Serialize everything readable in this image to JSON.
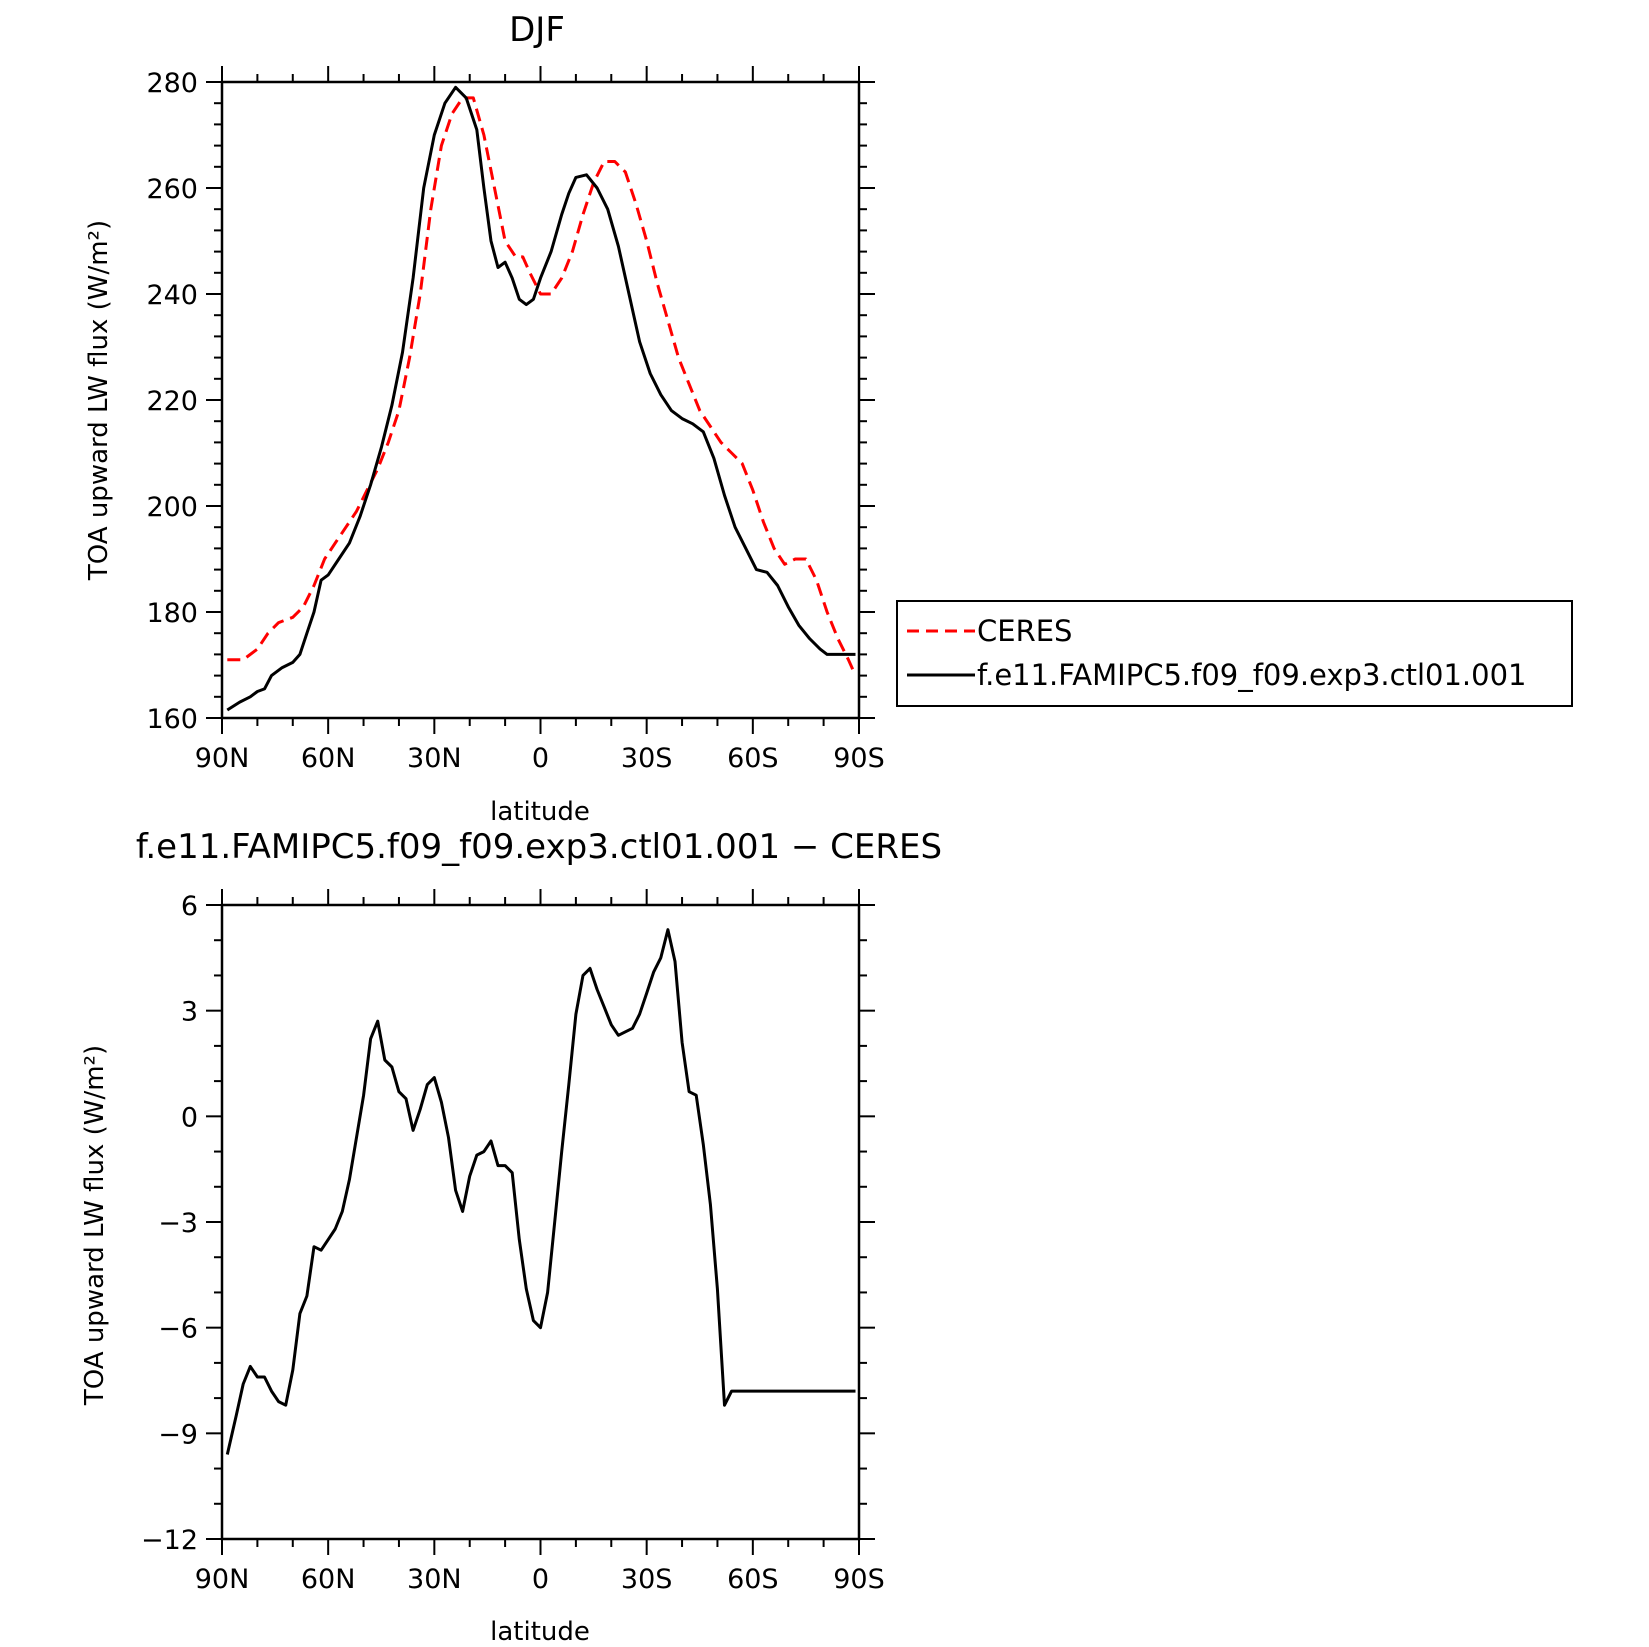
{
  "chart_data": [
    {
      "type": "line",
      "title": "DJF",
      "xlabel": "latitude",
      "ylabel": "TOA upward LW flux (W/m²)",
      "xlim": [
        90,
        -90
      ],
      "ylim": [
        160,
        280
      ],
      "yticks": [
        160,
        180,
        200,
        220,
        240,
        260,
        280
      ],
      "xticks": [
        90,
        60,
        30,
        0,
        -30,
        -60,
        -90
      ],
      "xtick_labels": [
        "90N",
        "60N",
        "30N",
        "0",
        "30S",
        "60S",
        "90S"
      ],
      "legend": "right",
      "legend_entries": [
        "CERES",
        "f.e11.FAMIPC5.f09_f09.exp3.ctl01.001"
      ],
      "series": [
        {
          "name": "CERES",
          "color": "#ff0000",
          "dash": "dashed",
          "x": [
            88.5,
            84,
            80,
            77,
            74,
            70,
            67,
            64,
            61,
            58,
            55,
            52,
            49,
            46,
            43,
            40,
            37,
            34,
            31,
            28,
            25,
            22,
            19,
            16,
            13,
            10,
            7,
            5,
            3,
            0,
            -3,
            -6,
            -9,
            -12,
            -15,
            -18,
            -21,
            -24,
            -27,
            -30,
            -33,
            -36,
            -39,
            -42,
            -45,
            -48,
            -51,
            -54,
            -57,
            -60,
            -63,
            -66,
            -69,
            -72,
            -75,
            -78,
            -81,
            -84,
            -87,
            -89
          ],
          "y": [
            171,
            171,
            173,
            176,
            178,
            179,
            181,
            185,
            190,
            193,
            196,
            199,
            203,
            207,
            212,
            218,
            228,
            240,
            256,
            268,
            274,
            277,
            277,
            270,
            260,
            250,
            247,
            247,
            244,
            240,
            240,
            243,
            248,
            255,
            261,
            265,
            265,
            263,
            257,
            250,
            242,
            235,
            228,
            223,
            218,
            215,
            212,
            210,
            208,
            203,
            197,
            192,
            189,
            190,
            190,
            186,
            180,
            175,
            171,
            168
          ]
        },
        {
          "name": "f.e11.FAMIPC5.f09_f09.exp3.ctl01.001",
          "color": "#000000",
          "dash": "solid",
          "x": [
            88.5,
            85,
            82,
            80,
            78,
            76,
            73,
            70,
            68,
            66,
            64,
            62,
            60,
            57,
            54,
            51,
            48,
            45,
            42,
            39,
            36,
            33,
            30,
            27,
            24,
            21,
            18,
            16,
            14,
            12,
            10,
            8,
            6,
            4,
            2,
            0,
            -3,
            -6,
            -8,
            -10,
            -13,
            -16,
            -19,
            -22,
            -25,
            -28,
            -31,
            -34,
            -37,
            -40,
            -43,
            -46,
            -49,
            -52,
            -55,
            -58,
            -61,
            -64,
            -67,
            -70,
            -73,
            -76,
            -79,
            -81,
            -83,
            -85,
            -87,
            -89
          ],
          "y": [
            161.5,
            163,
            164,
            165,
            165.5,
            168,
            169.5,
            170.5,
            172,
            176,
            180,
            186,
            187,
            190,
            193,
            198,
            204,
            211,
            219,
            229,
            243,
            260,
            270,
            276,
            279,
            277,
            271,
            260,
            250,
            245,
            246,
            243,
            239,
            238,
            239,
            243,
            248,
            255,
            259,
            262,
            262.5,
            260,
            256,
            249,
            240,
            231,
            225,
            221,
            218,
            216.5,
            215.5,
            214,
            209,
            202,
            196,
            192,
            188,
            187.5,
            185,
            181,
            177.5,
            175,
            173,
            172,
            172,
            172,
            172,
            172
          ]
        }
      ]
    },
    {
      "type": "line",
      "title": "f.e11.FAMIPC5.f09_f09.exp3.ctl01.001 − CERES",
      "xlabel": "latitude",
      "ylabel": "TOA upward LW flux (W/m²)",
      "xlim": [
        90,
        -90
      ],
      "ylim": [
        -12,
        6
      ],
      "yticks": [
        -12,
        -9,
        -6,
        -3,
        0,
        3,
        6
      ],
      "ytick_labels": [
        "−12",
        "−9",
        "−6",
        "−3",
        "0",
        "3",
        "6"
      ],
      "xticks": [
        90,
        60,
        30,
        0,
        -30,
        -60,
        -90
      ],
      "xtick_labels": [
        "90N",
        "60N",
        "30N",
        "0",
        "30S",
        "60S",
        "90S"
      ],
      "series": [
        {
          "color": "#000000",
          "dash": "solid",
          "x": [
            88.5,
            86,
            84,
            82,
            80,
            78,
            76,
            74,
            72,
            70,
            68,
            66,
            64,
            62,
            60,
            58,
            56,
            54,
            52,
            50,
            48,
            46,
            44,
            42,
            40,
            38,
            36,
            34,
            32,
            30,
            28,
            26,
            24,
            22,
            20,
            18,
            16,
            14,
            12,
            10,
            8,
            6,
            4,
            2,
            0,
            -2,
            -4,
            -6,
            -8,
            -10,
            -12,
            -14,
            -16,
            -18,
            -20,
            -22,
            -24,
            -26,
            -28,
            -30,
            -32,
            -34,
            -36,
            -38,
            -40,
            -42,
            -44,
            -46,
            -48,
            -50,
            -52,
            -54,
            -56,
            -58,
            -60,
            -62,
            -64,
            -66,
            -68,
            -70,
            -72,
            -74,
            -76,
            -78,
            -80,
            -82,
            -84,
            -86,
            -88,
            -89
          ],
          "y": [
            -9.6,
            -8.5,
            -7.6,
            -7.1,
            -7.4,
            -7.4,
            -7.8,
            -8.1,
            -8.2,
            -7.2,
            -5.6,
            -5.1,
            -3.7,
            -3.8,
            -3.5,
            -3.2,
            -2.7,
            -1.8,
            -0.6,
            0.6,
            2.2,
            2.7,
            1.6,
            1.4,
            0.7,
            0.5,
            -0.4,
            0.2,
            0.9,
            1.1,
            0.4,
            -0.6,
            -2.1,
            -2.7,
            -1.7,
            -1.1,
            -1.0,
            -0.7,
            -1.4,
            -1.4,
            -1.6,
            -3.5,
            -4.9,
            -5.8,
            -6.0,
            -5.0,
            -3.0,
            -1.0,
            0.9,
            2.9,
            4.0,
            4.2,
            3.6,
            3.1,
            2.6,
            2.3,
            2.4,
            2.5,
            2.9,
            3.5,
            4.1,
            4.5,
            5.3,
            4.4,
            2.1,
            0.7,
            0.6,
            -0.8,
            -2.5,
            -4.9,
            -8.2,
            -7.8,
            -7.8,
            -7.8,
            -7.8,
            -7.8,
            -7.8,
            -7.8,
            -7.8,
            -7.8,
            -7.8,
            -7.8,
            -7.8,
            -7.8,
            -7.8,
            -7.8,
            -7.8,
            -7.8,
            -7.8,
            -7.8
          ]
        }
      ]
    }
  ]
}
